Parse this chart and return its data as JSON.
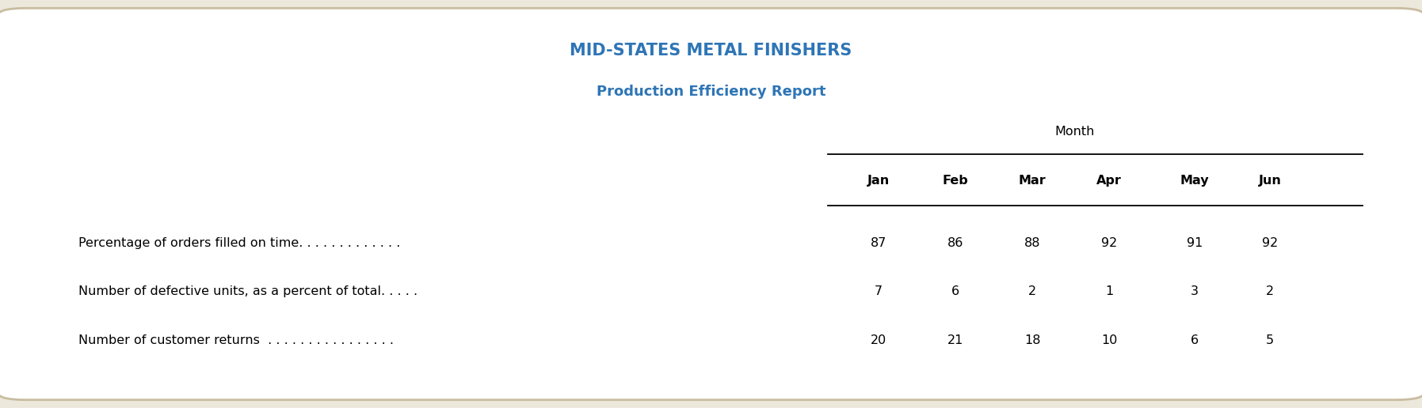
{
  "title_line1": "MID-STATES METAL FINISHERS",
  "title_line2": "Production Efficiency Report",
  "title_color": "#2E75B6",
  "month_label": "Month",
  "col_headers": [
    "Jan",
    "Feb",
    "Mar",
    "Apr",
    "May",
    "Jun"
  ],
  "rows": [
    {
      "label": "Percentage of orders filled on time. . . . . . . . . . . . .",
      "values": [
        "87",
        "86",
        "88",
        "92",
        "91",
        "92"
      ]
    },
    {
      "label": "Number of defective units, as a percent of total. . . . .",
      "values": [
        "7",
        "6",
        "2",
        "1",
        "3",
        "2"
      ]
    },
    {
      "label": "Number of customer returns  . . . . . . . . . . . . . . . .",
      "values": [
        "20",
        "21",
        "18",
        "10",
        "6",
        "5"
      ]
    }
  ],
  "background_color": "#EDE8DC",
  "box_color": "#FFFFFF",
  "text_color": "#000000",
  "title_fontsize": 15,
  "subtitle_fontsize": 13,
  "body_fontsize": 11.5,
  "col_header_fontsize": 11.5,
  "month_fontsize": 11.5
}
